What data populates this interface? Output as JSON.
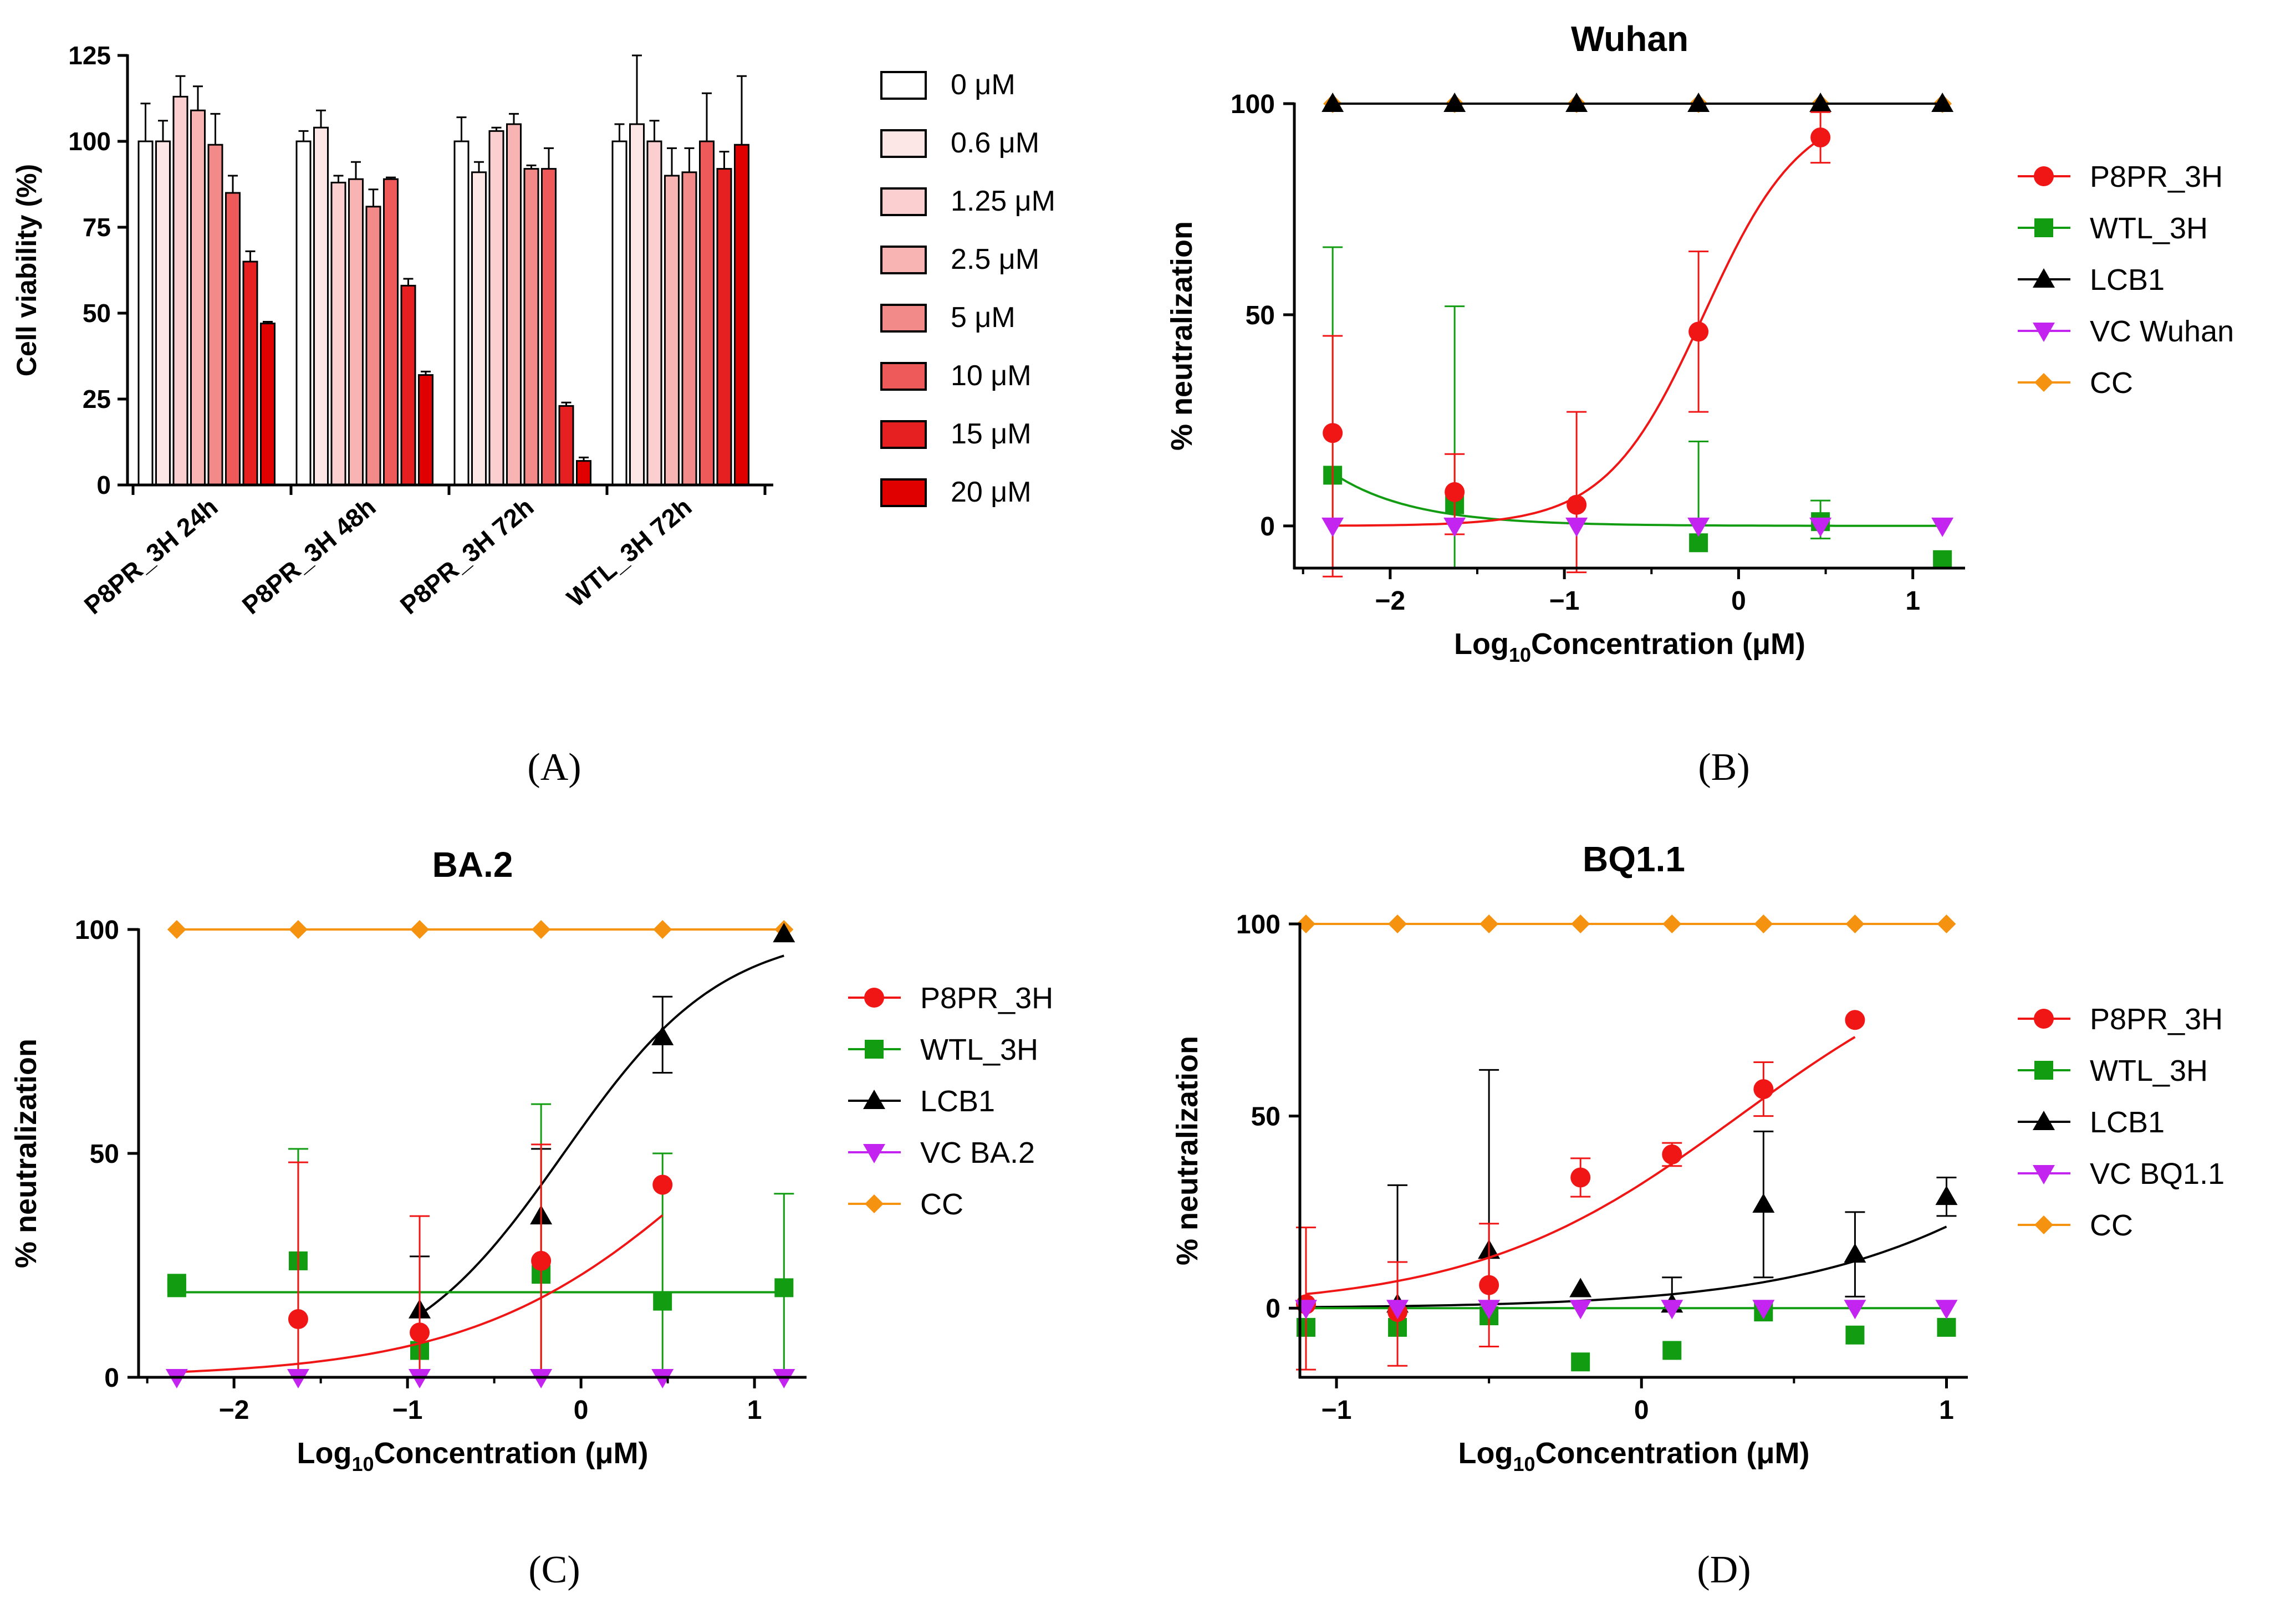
{
  "chart_data": [
    {
      "panel": "A",
      "type": "bar",
      "title": "",
      "ylabel": "Cell viability (%)",
      "ylim": [
        0,
        125
      ],
      "yticks": [
        0,
        25,
        50,
        75,
        100,
        125
      ],
      "categories": [
        "P8PR_3H 24h",
        "P8PR_3H 48h",
        "P8PR_3H 72h",
        "WTL_3H 72h"
      ],
      "series": [
        {
          "name": "0 μM",
          "color": "#ffffff",
          "values": [
            100,
            100,
            100,
            100
          ],
          "errors": [
            11,
            3,
            7,
            5
          ]
        },
        {
          "name": "0.6 μM",
          "color": "#fde6e6",
          "values": [
            100,
            104,
            91,
            105
          ],
          "errors": [
            6,
            5,
            3,
            20
          ]
        },
        {
          "name": "1.25 μM",
          "color": "#fbcfcf",
          "values": [
            113,
            88,
            103,
            100
          ],
          "errors": [
            6,
            2,
            1,
            6
          ]
        },
        {
          "name": "2.5 μM",
          "color": "#f8b3b3",
          "values": [
            109,
            89,
            105,
            90
          ],
          "errors": [
            7,
            5,
            3,
            8
          ]
        },
        {
          "name": "5 μM",
          "color": "#f38a8a",
          "values": [
            99,
            81,
            92,
            91
          ],
          "errors": [
            9,
            5,
            1,
            7
          ]
        },
        {
          "name": "10 μM",
          "color": "#ee5a5a",
          "values": [
            85,
            89,
            92,
            100
          ],
          "errors": [
            5,
            0.5,
            6,
            14
          ]
        },
        {
          "name": "15 μM",
          "color": "#e62020",
          "values": [
            65,
            58,
            23,
            92
          ],
          "errors": [
            3,
            2,
            1,
            5
          ]
        },
        {
          "name": "20 μM",
          "color": "#e00000",
          "values": [
            47,
            32,
            7,
            99
          ],
          "errors": [
            0.5,
            1,
            1,
            20
          ]
        }
      ]
    },
    {
      "panel": "B",
      "type": "scatter",
      "title": "Wuhan",
      "xlabel": "Log10Concentration (μM)",
      "ylabel": "% neutralization",
      "xlim": [
        -2.55,
        1.3
      ],
      "ylim": [
        -10,
        100
      ],
      "xticks": [
        -2,
        -1,
        0,
        1
      ],
      "yticks": [
        0,
        50,
        100
      ],
      "series": [
        {
          "name": "P8PR_3H",
          "color": "#f01616",
          "marker": "circle",
          "x": [
            -2.33,
            -1.63,
            -0.93,
            -0.23,
            0.47
          ],
          "y": [
            22,
            8,
            5,
            46,
            92
          ],
          "err_up": [
            23,
            9,
            22,
            19,
            6
          ],
          "err_down": [
            34,
            10,
            16,
            19,
            6
          ],
          "fit": {
            "type": "sigmoid",
            "bottom": 0,
            "top": 100,
            "ec50": -0.2,
            "hill": 1.55
          }
        },
        {
          "name": "WTL_3H",
          "color": "#119c11",
          "marker": "square",
          "x": [
            -2.33,
            -1.63,
            -0.23,
            0.47,
            1.17
          ],
          "y": [
            12,
            5,
            -4,
            1,
            -8
          ],
          "err_up": [
            54,
            47,
            24,
            5,
            0
          ],
          "err_down": [
            22,
            15,
            0,
            4,
            0
          ],
          "fit": {
            "type": "decay",
            "plateau": 0,
            "span": 12.5,
            "k": 2.2,
            "x0": -2.33
          }
        },
        {
          "name": "LCB1",
          "color": "#000000",
          "marker": "triangle-up",
          "x": [
            -2.33,
            -1.63,
            -0.93,
            -0.23,
            0.47,
            1.17
          ],
          "y": [
            100,
            100,
            100,
            100,
            100,
            100
          ],
          "fit": {
            "type": "line"
          }
        },
        {
          "name": "VC Wuhan",
          "color": "#c424f0",
          "marker": "triangle-down",
          "x": [
            -2.33,
            -1.63,
            -0.93,
            -0.23,
            0.47,
            1.17
          ],
          "y": [
            0,
            0,
            0,
            0,
            0,
            0
          ]
        },
        {
          "name": "CC",
          "color": "#f5920f",
          "marker": "diamond",
          "x": [
            -2.33,
            -1.63,
            -0.93,
            -0.23,
            0.47,
            1.17
          ],
          "y": [
            100,
            100,
            100,
            100,
            100,
            100
          ],
          "fit": {
            "type": "line"
          }
        }
      ]
    },
    {
      "panel": "C",
      "type": "scatter",
      "title": "BA.2",
      "xlabel": "Log10Concentration (μM)",
      "ylabel": "% neutralization",
      "xlim": [
        -2.55,
        1.3
      ],
      "ylim": [
        0,
        100
      ],
      "xticks": [
        -2,
        -1,
        0,
        1
      ],
      "yticks": [
        0,
        50,
        100
      ],
      "series": [
        {
          "name": "P8PR_3H",
          "color": "#f01616",
          "marker": "circle",
          "x": [
            -1.63,
            -0.93,
            -0.23,
            0.47
          ],
          "y": [
            13,
            10,
            26,
            43
          ],
          "err_up": [
            35,
            26,
            26,
            0
          ],
          "err_down": [
            13,
            10,
            26,
            0
          ],
          "fit": {
            "type": "sigmoid",
            "bottom": 0,
            "top": 100,
            "ec50": 0.88,
            "hill": 0.6,
            "xfrom": -2.33,
            "xto": 0.47
          }
        },
        {
          "name": "WTL_3H",
          "color": "#119c11",
          "marker": "square",
          "x": [
            -2.33,
            -2.33,
            -1.63,
            -0.93,
            -0.23,
            0.47,
            1.17
          ],
          "y": [
            21,
            20,
            26,
            6,
            23,
            17,
            20
          ],
          "err_up": [
            0,
            0,
            25,
            0,
            38,
            33,
            21
          ],
          "err_down": [
            0,
            0,
            26,
            0,
            23,
            17,
            20
          ],
          "fit": {
            "type": "line",
            "value": 19
          }
        },
        {
          "name": "LCB1",
          "color": "#000000",
          "marker": "triangle-up",
          "x": [
            -0.93,
            -0.23,
            0.47,
            1.17
          ],
          "y": [
            15,
            36,
            76,
            99
          ],
          "err_up": [
            12,
            15,
            9,
            0
          ],
          "err_down": [
            15,
            36,
            8,
            0
          ],
          "fit": {
            "type": "sigmoid",
            "bottom": 0,
            "top": 100,
            "ec50": -0.1,
            "hill": 0.95
          }
        },
        {
          "name": "VC BA.2",
          "color": "#c424f0",
          "marker": "triangle-down",
          "x": [
            -2.33,
            -1.63,
            -0.93,
            -0.23,
            0.47,
            1.17
          ],
          "y": [
            0,
            0,
            0,
            0,
            0,
            0
          ]
        },
        {
          "name": "CC",
          "color": "#f5920f",
          "marker": "diamond",
          "x": [
            -2.33,
            -1.63,
            -0.93,
            -0.23,
            0.47,
            1.17
          ],
          "y": [
            100,
            100,
            100,
            100,
            100,
            100
          ],
          "fit": {
            "type": "line"
          }
        }
      ]
    },
    {
      "panel": "D",
      "type": "scatter",
      "title": "BQ1.1",
      "xlabel": "Log10Concentration (μM)",
      "ylabel": "% neutralization",
      "xlim": [
        -1.12,
        1.07
      ],
      "ylim": [
        -18,
        100
      ],
      "xticks": [
        -1,
        0,
        1
      ],
      "yticks": [
        0,
        50,
        100
      ],
      "series": [
        {
          "name": "P8PR_3H",
          "color": "#f01616",
          "marker": "circle",
          "x": [
            -1.1,
            -0.8,
            -0.5,
            -0.2,
            0.1,
            0.4,
            0.7
          ],
          "y": [
            1,
            -1,
            6,
            34,
            40,
            57,
            75
          ],
          "err_up": [
            20,
            13,
            16,
            5,
            3,
            7,
            0
          ],
          "err_down": [
            17,
            14,
            16,
            5,
            3,
            7,
            0
          ],
          "fit": {
            "type": "sigmoid",
            "bottom": 0,
            "top": 100,
            "ec50": 0.32,
            "hill": 1.0,
            "xfrom": -1.1,
            "xto": 0.7
          }
        },
        {
          "name": "WTL_3H",
          "color": "#119c11",
          "marker": "square",
          "x": [
            -1.1,
            -0.8,
            -0.5,
            -0.2,
            0.1,
            0.4,
            0.7,
            1.0
          ],
          "y": [
            -5,
            -5,
            -2,
            -14,
            -11,
            -1,
            -7,
            -5
          ],
          "fit": {
            "type": "line",
            "value": 0
          }
        },
        {
          "name": "LCB1",
          "color": "#000000",
          "marker": "triangle-up",
          "x": [
            -0.8,
            -0.5,
            -0.2,
            0.1,
            0.4,
            0.7,
            1.0
          ],
          "y": [
            1,
            15,
            5,
            1,
            27,
            14,
            29
          ],
          "err_up": [
            31,
            47,
            0,
            7,
            19,
            11,
            5
          ],
          "err_down": [
            1,
            15,
            0,
            1,
            19,
            11,
            5
          ],
          "fit": {
            "type": "sigmoid",
            "bottom": 0,
            "top": 100,
            "ec50": 1.6,
            "hill": 0.95,
            "xfrom": -1.1,
            "xto": 1.0
          }
        },
        {
          "name": "VC BQ1.1",
          "color": "#c424f0",
          "marker": "triangle-down",
          "x": [
            -1.1,
            -0.8,
            -0.5,
            -0.2,
            0.1,
            0.4,
            0.7,
            1.0
          ],
          "y": [
            0,
            0,
            0,
            0,
            0,
            0,
            0,
            0
          ]
        },
        {
          "name": "CC",
          "color": "#f5920f",
          "marker": "diamond",
          "x": [
            -1.1,
            -0.8,
            -0.5,
            -0.2,
            0.1,
            0.4,
            0.7,
            1.0
          ],
          "y": [
            100,
            100,
            100,
            100,
            100,
            100,
            100,
            100
          ],
          "fit": {
            "type": "line"
          }
        }
      ]
    }
  ],
  "panel_labels": {
    "A": "(A)",
    "B": "(B)",
    "C": "(C)",
    "D": "(D)"
  }
}
